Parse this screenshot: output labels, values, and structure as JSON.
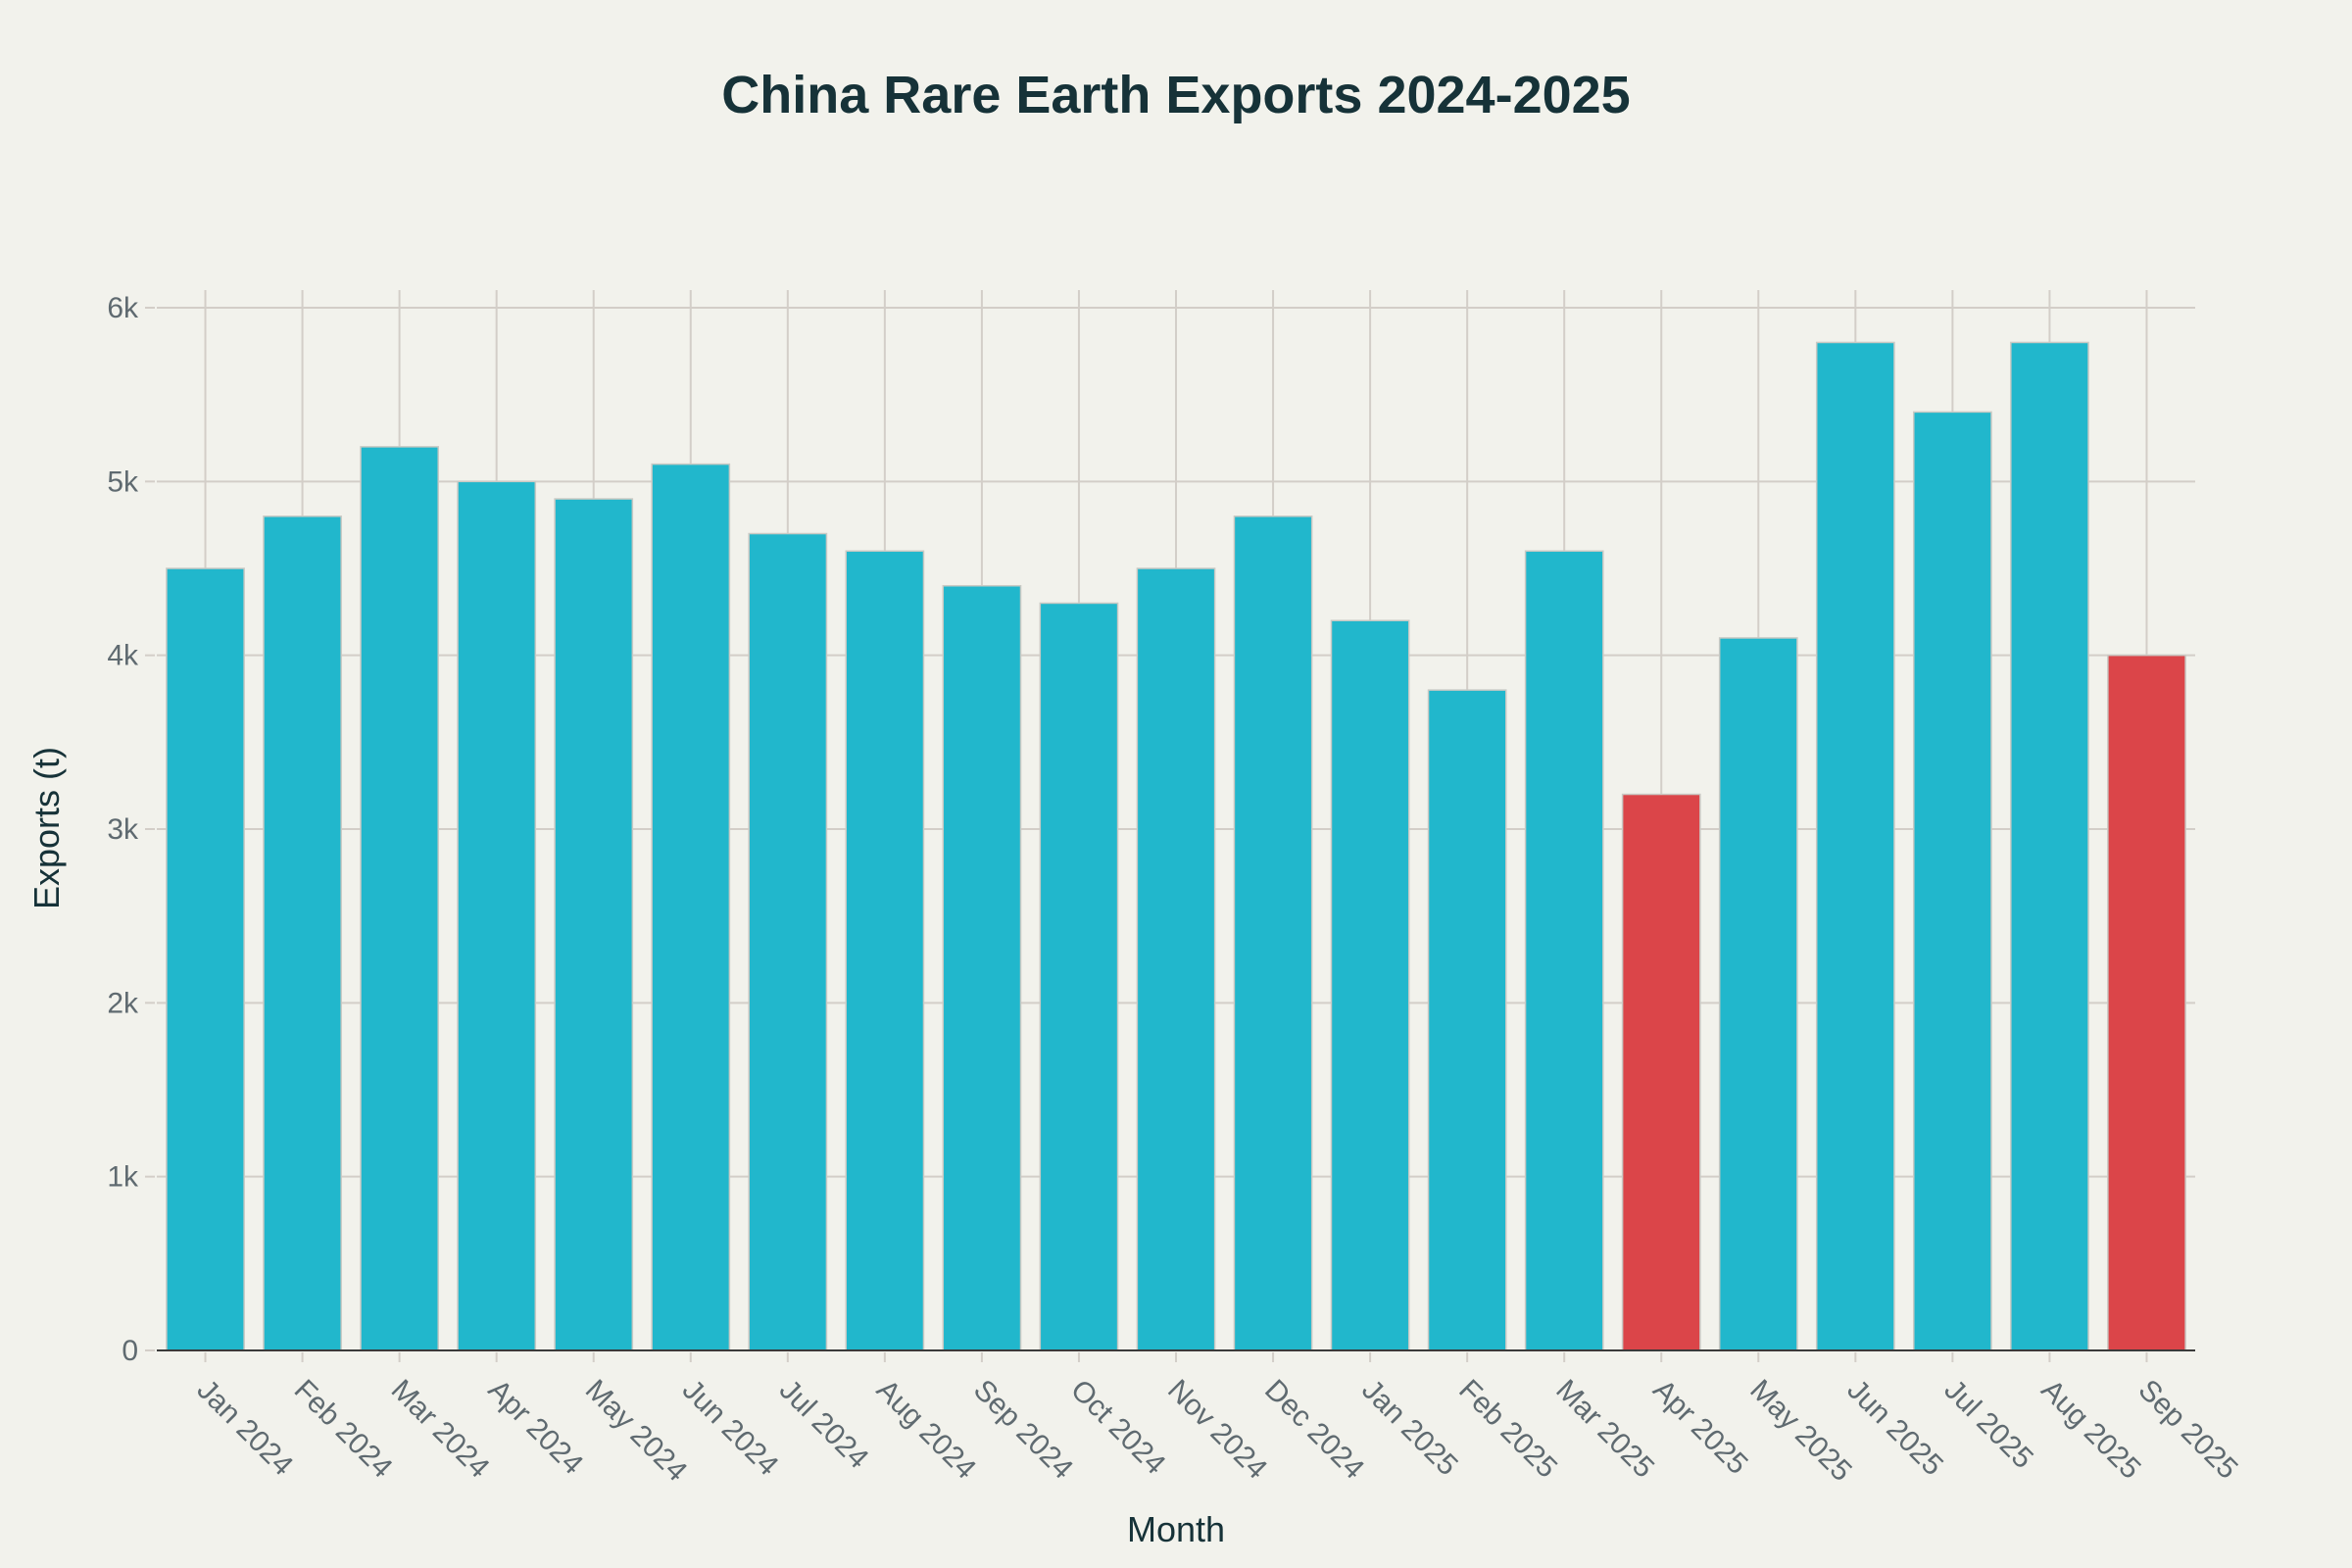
{
  "chart_data": {
    "type": "bar",
    "title": "China Rare Earth Exports 2024-2025",
    "xlabel": "Month",
    "ylabel": "Exports (t)",
    "ylim": [
      0,
      6100
    ],
    "yticks": [
      0,
      1000,
      2000,
      3000,
      4000,
      5000,
      6000
    ],
    "ytick_labels": [
      "0",
      "1k",
      "2k",
      "3k",
      "4k",
      "5k",
      "6k"
    ],
    "grid": true,
    "legend": "none",
    "categories": [
      "Jan 2024",
      "Feb 2024",
      "Mar 2024",
      "Apr 2024",
      "May 2024",
      "Jun 2024",
      "Jul 2024",
      "Aug 2024",
      "Sep 2024",
      "Oct 2024",
      "Nov 2024",
      "Dec 2024",
      "Jan 2025",
      "Feb 2025",
      "Mar 2025",
      "Apr 2025",
      "May 2025",
      "Jun 2025",
      "Jul 2025",
      "Aug 2025",
      "Sep 2025"
    ],
    "values": [
      4500,
      4800,
      5200,
      5000,
      4900,
      5100,
      4700,
      4600,
      4400,
      4300,
      4500,
      4800,
      4200,
      3800,
      4600,
      3200,
      4100,
      5800,
      5400,
      5800,
      4000
    ],
    "highlighted": [
      "Apr 2025",
      "Sep 2025"
    ],
    "colors": {
      "default": "#21b7cc",
      "highlight": "#db4549"
    }
  }
}
